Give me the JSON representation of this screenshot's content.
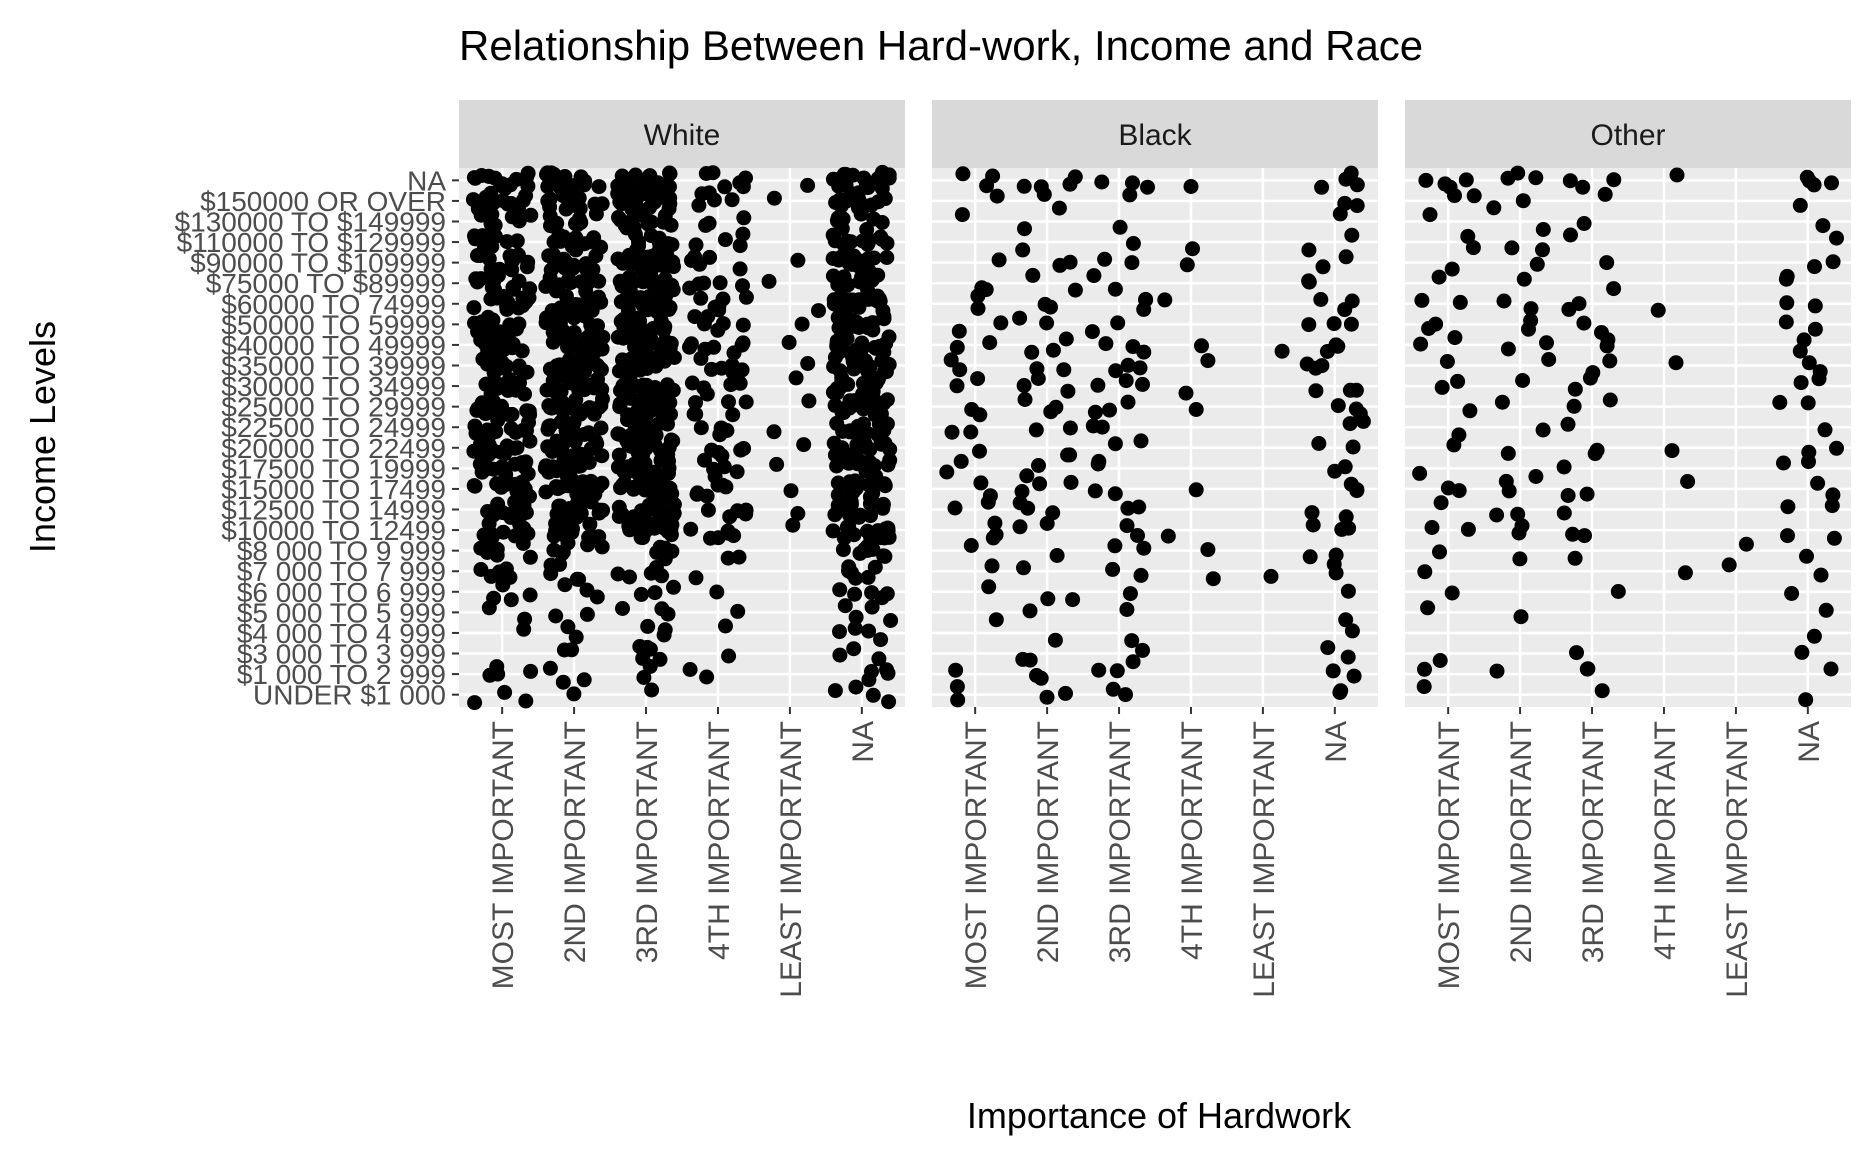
{
  "chart_data": {
    "type": "scatter",
    "title": "Relationship Between Hard-work, Income and Race",
    "xlabel": "Importance of Hardwork",
    "ylabel": "Income Levels",
    "facets": [
      "White",
      "Black",
      "Other"
    ],
    "x_categories": [
      "MOST IMPORTANT",
      "2ND IMPORTANT",
      "3RD IMPORTANT",
      "4TH IMPORTANT",
      "LEAST IMPORTANT",
      "NA"
    ],
    "y_categories": [
      "UNDER $1 000",
      "$1 000 TO 2 999",
      "$3 000 TO 3 999",
      "$4 000 TO 4 999",
      "$5 000 TO 5 999",
      "$6 000 TO 6 999",
      "$7 000 TO 7 999",
      "$8 000 TO 9 999",
      "$10000 TO 12499",
      "$12500 TO 14999",
      "$15000 TO 17499",
      "$17500 TO 19999",
      "$20000 TO 22499",
      "$22500 TO 24999",
      "$25000 TO 29999",
      "$30000 TO 34999",
      "$35000 TO 39999",
      "$40000 TO 49999",
      "$50000 TO 59999",
      "$60000 TO 74999",
      "$75000 TO $89999",
      "$90000 TO $109999",
      "$110000 TO $129999",
      "$130000 TO $149999",
      "$150000 OR OVER",
      "NA"
    ],
    "grid": true,
    "legend": "none",
    "jitter": true,
    "point_color": "#000000",
    "counts": {
      "White": [
        [
          3,
          1,
          1,
          0,
          0,
          4
        ],
        [
          4,
          3,
          2,
          2,
          0,
          4
        ],
        [
          0,
          2,
          6,
          1,
          0,
          3
        ],
        [
          1,
          2,
          3,
          1,
          0,
          4
        ],
        [
          2,
          2,
          3,
          1,
          0,
          4
        ],
        [
          4,
          3,
          3,
          1,
          0,
          5
        ],
        [
          6,
          5,
          5,
          1,
          0,
          6
        ],
        [
          7,
          6,
          6,
          2,
          0,
          8
        ],
        [
          11,
          16,
          20,
          6,
          1,
          16
        ],
        [
          12,
          14,
          18,
          5,
          1,
          15
        ],
        [
          14,
          16,
          22,
          6,
          1,
          17
        ],
        [
          12,
          14,
          19,
          5,
          1,
          14
        ],
        [
          14,
          16,
          20,
          5,
          1,
          16
        ],
        [
          12,
          14,
          18,
          5,
          1,
          15
        ],
        [
          16,
          18,
          22,
          6,
          1,
          18
        ],
        [
          16,
          18,
          22,
          6,
          1,
          18
        ],
        [
          14,
          16,
          20,
          6,
          1,
          16
        ],
        [
          18,
          20,
          24,
          7,
          1,
          20
        ],
        [
          16,
          18,
          22,
          6,
          1,
          18
        ],
        [
          16,
          18,
          22,
          6,
          1,
          18
        ],
        [
          12,
          14,
          18,
          5,
          1,
          15
        ],
        [
          12,
          14,
          18,
          5,
          1,
          15
        ],
        [
          10,
          12,
          14,
          4,
          0,
          12
        ],
        [
          8,
          10,
          12,
          3,
          0,
          10
        ],
        [
          12,
          14,
          18,
          5,
          1,
          15
        ],
        [
          14,
          16,
          18,
          6,
          1,
          16
        ]
      ],
      "Black": [
        [
          2,
          2,
          2,
          0,
          0,
          2
        ],
        [
          1,
          2,
          2,
          0,
          0,
          2
        ],
        [
          0,
          2,
          2,
          0,
          0,
          2
        ],
        [
          0,
          1,
          1,
          0,
          0,
          1
        ],
        [
          1,
          1,
          1,
          0,
          0,
          1
        ],
        [
          1,
          2,
          1,
          0,
          0,
          1
        ],
        [
          1,
          1,
          2,
          1,
          1,
          2
        ],
        [
          1,
          1,
          2,
          1,
          0,
          2
        ],
        [
          3,
          2,
          2,
          1,
          0,
          3
        ],
        [
          2,
          3,
          2,
          0,
          0,
          2
        ],
        [
          2,
          3,
          2,
          1,
          0,
          3
        ],
        [
          2,
          2,
          2,
          0,
          0,
          2
        ],
        [
          1,
          2,
          2,
          0,
          0,
          2
        ],
        [
          2,
          2,
          2,
          0,
          0,
          2
        ],
        [
          2,
          3,
          3,
          1,
          0,
          3
        ],
        [
          2,
          3,
          3,
          1,
          0,
          3
        ],
        [
          2,
          2,
          3,
          1,
          0,
          3
        ],
        [
          2,
          3,
          3,
          1,
          1,
          3
        ],
        [
          2,
          2,
          2,
          0,
          0,
          3
        ],
        [
          2,
          2,
          3,
          1,
          0,
          3
        ],
        [
          2,
          2,
          2,
          0,
          0,
          2
        ],
        [
          1,
          2,
          2,
          1,
          0,
          2
        ],
        [
          0,
          1,
          1,
          1,
          0,
          2
        ],
        [
          1,
          1,
          1,
          0,
          0,
          1
        ],
        [
          1,
          2,
          1,
          0,
          0,
          2
        ],
        [
          3,
          4,
          3,
          1,
          0,
          4
        ]
      ],
      "Other": [
        [
          1,
          0,
          1,
          0,
          0,
          1
        ],
        [
          1,
          1,
          2,
          0,
          0,
          1
        ],
        [
          1,
          0,
          1,
          0,
          0,
          1
        ],
        [
          0,
          0,
          0,
          0,
          0,
          1
        ],
        [
          1,
          1,
          0,
          0,
          0,
          1
        ],
        [
          1,
          0,
          1,
          0,
          0,
          1
        ],
        [
          1,
          0,
          0,
          1,
          1,
          1
        ],
        [
          1,
          1,
          1,
          0,
          1,
          1
        ],
        [
          2,
          2,
          2,
          0,
          0,
          2
        ],
        [
          1,
          2,
          1,
          0,
          0,
          2
        ],
        [
          2,
          2,
          2,
          1,
          0,
          2
        ],
        [
          1,
          1,
          1,
          0,
          0,
          2
        ],
        [
          1,
          1,
          2,
          1,
          0,
          2
        ],
        [
          1,
          1,
          1,
          0,
          0,
          1
        ],
        [
          1,
          1,
          2,
          0,
          0,
          2
        ],
        [
          2,
          1,
          2,
          0,
          0,
          2
        ],
        [
          1,
          1,
          2,
          1,
          0,
          2
        ],
        [
          2,
          2,
          2,
          0,
          0,
          2
        ],
        [
          2,
          2,
          2,
          0,
          0,
          2
        ],
        [
          2,
          2,
          2,
          1,
          0,
          2
        ],
        [
          1,
          1,
          1,
          0,
          0,
          2
        ],
        [
          1,
          1,
          1,
          0,
          0,
          2
        ],
        [
          2,
          2,
          1,
          0,
          0,
          1
        ],
        [
          1,
          1,
          1,
          0,
          0,
          1
        ],
        [
          2,
          2,
          1,
          0,
          0,
          1
        ],
        [
          4,
          3,
          3,
          1,
          0,
          4
        ]
      ]
    }
  }
}
